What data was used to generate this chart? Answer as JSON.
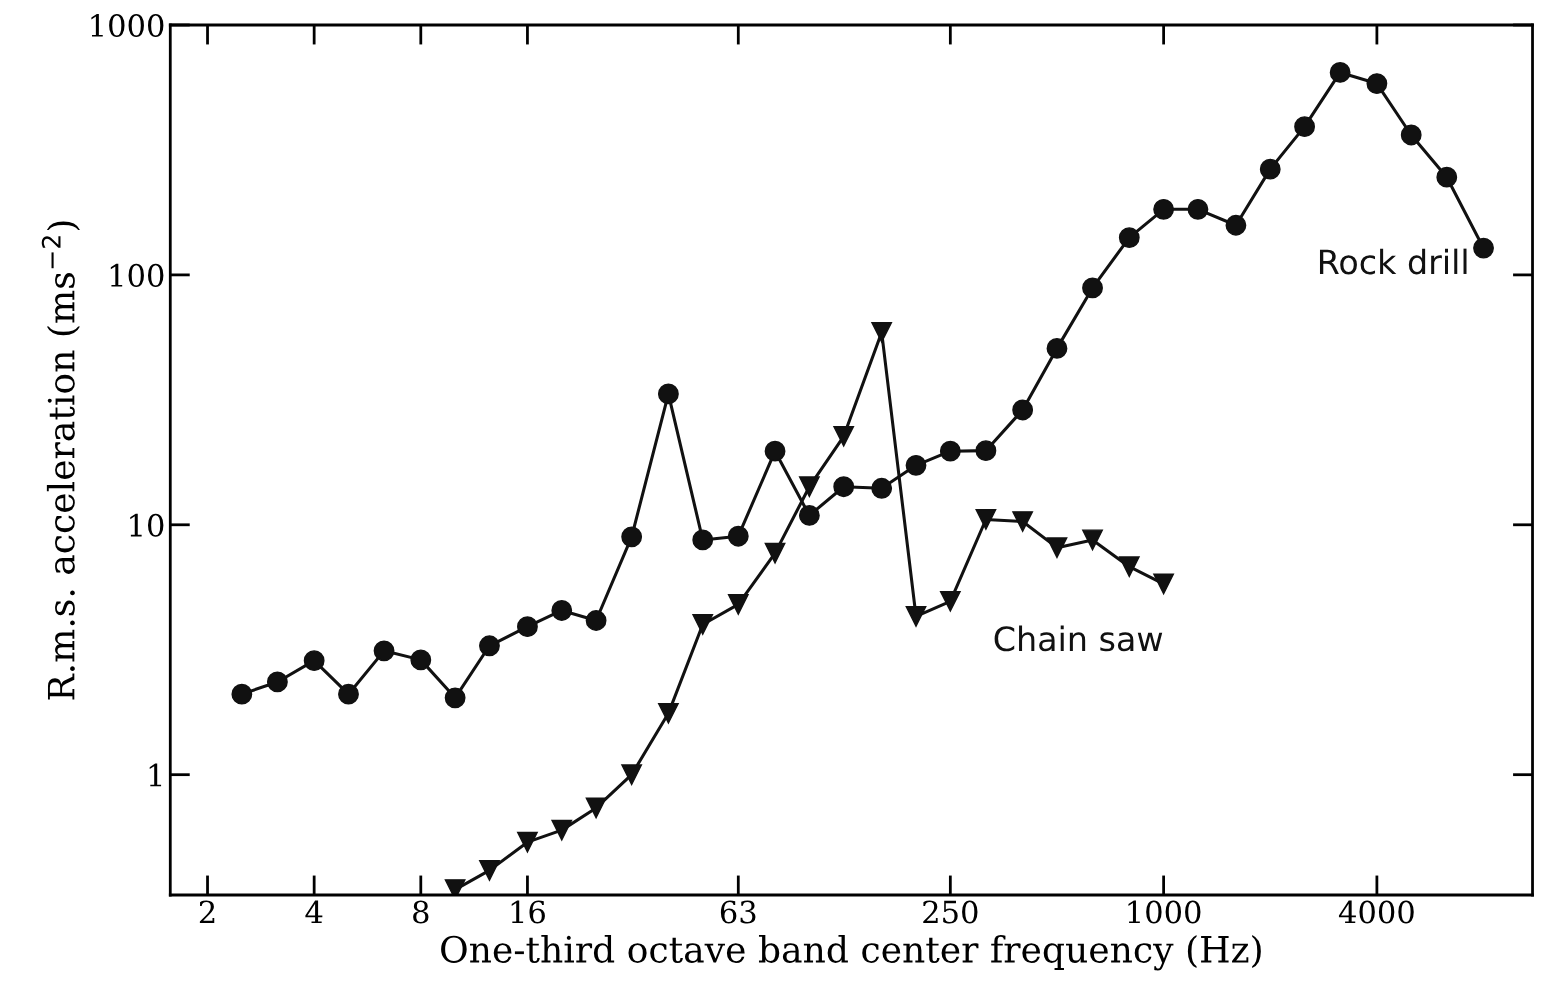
{
  "chart_data": {
    "type": "line",
    "xlabel": "One-third octave band center frequency (Hz)",
    "ylabel": "R.m.s. acceleration (ms$^{−2}$)",
    "log": "xy",
    "grid": false,
    "legend": false,
    "line_style": "solid",
    "xlim": [
      1.57,
      11000
    ],
    "ylim": [
      0.33,
      1000
    ],
    "xticks": [
      2,
      4,
      8,
      16,
      63,
      250,
      1000,
      4000
    ],
    "yticks": [
      1,
      10,
      100,
      1000
    ],
    "series": [
      {
        "name": "Rock drill",
        "color": "#111111",
        "marker": "circle",
        "x": [
          2.5,
          3.15,
          4,
          5,
          6.3,
          8,
          10,
          12.5,
          16,
          20,
          25,
          31.5,
          40,
          50,
          63,
          80,
          100,
          125,
          160,
          200,
          250,
          315,
          400,
          500,
          630,
          800,
          1000,
          1250,
          1600,
          2000,
          2500,
          3150,
          4000,
          5000,
          6300,
          8000
        ],
        "values": [
          2.1,
          2.35,
          2.86,
          2.1,
          3.13,
          2.88,
          2.03,
          3.28,
          3.91,
          4.54,
          4.14,
          8.95,
          33.4,
          8.7,
          9.0,
          19.7,
          10.9,
          14.2,
          14.0,
          17.3,
          19.7,
          19.8,
          28.8,
          50.8,
          88.7,
          141,
          183,
          183,
          158,
          265,
          392,
          646,
          583,
          363,
          246,
          128
        ]
      },
      {
        "name": "Chain saw",
        "color": "#111111",
        "marker": "triangle",
        "x": [
          10,
          12.5,
          16,
          20,
          25,
          31.5,
          40,
          50,
          63,
          80,
          100,
          125,
          160,
          200,
          250,
          315,
          400,
          500,
          630,
          800,
          1000
        ],
        "values": [
          0.347,
          0.414,
          0.537,
          0.6,
          0.736,
          1.0,
          1.76,
          3.99,
          4.8,
          7.7,
          14.2,
          22.6,
          58.9,
          4.3,
          4.94,
          10.5,
          10.3,
          8.1,
          8.7,
          6.8,
          5.8
        ]
      }
    ]
  }
}
